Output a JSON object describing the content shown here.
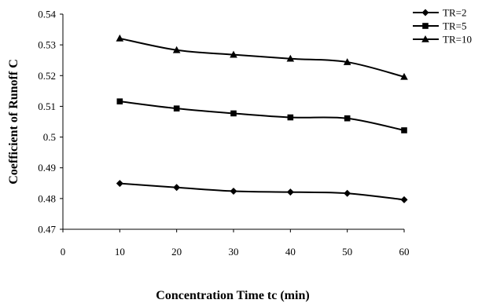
{
  "chart_data": {
    "type": "line",
    "title": "",
    "xlabel": "Concentration Time tc (min)",
    "ylabel": "Coefficient of Runoff C",
    "xlim": [
      0,
      60
    ],
    "ylim": [
      0.47,
      0.54
    ],
    "x_ticks": [
      "0",
      "10",
      "20",
      "30",
      "40",
      "50",
      "60"
    ],
    "y_ticks": [
      "0.47",
      "0.48",
      "0.49",
      "0.5",
      "0.51",
      "0.52",
      "0.53",
      "0.54"
    ],
    "grid": false,
    "legend_position": "top-right",
    "x": [
      10,
      20,
      30,
      40,
      50,
      60
    ],
    "series": [
      {
        "name": "TR=2",
        "marker": "diamond",
        "values": [
          0.4849,
          0.4836,
          0.4824,
          0.4821,
          0.4817,
          0.4796
        ]
      },
      {
        "name": "TR=5",
        "marker": "square",
        "values": [
          0.5116,
          0.5093,
          0.5077,
          0.5064,
          0.5061,
          0.5022
        ]
      },
      {
        "name": "TR=10",
        "marker": "triangle",
        "values": [
          0.5321,
          0.5283,
          0.5268,
          0.5255,
          0.5244,
          0.5196
        ]
      }
    ],
    "colors": {
      "line": "#000000",
      "axis": "#000000",
      "background": "#ffffff"
    }
  }
}
